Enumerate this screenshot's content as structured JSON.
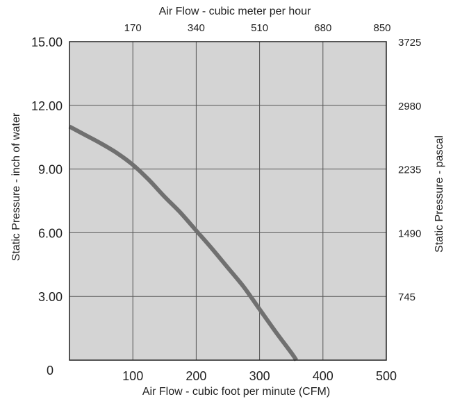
{
  "colors": {
    "plot_background": "#d4d4d4",
    "grid": "#555555",
    "curve": "#707070",
    "frame": "#222222",
    "text": "#222222"
  },
  "chart_data": {
    "type": "line",
    "title": "",
    "xlabel": "Air Flow - cubic foot per minute (CFM)",
    "ylabel": "Static Pressure - inch of water",
    "x2label": "Air Flow - cubic meter per hour",
    "y2label": "Static Pressure - pascal",
    "xlim": [
      0,
      500
    ],
    "ylim": [
      0,
      15
    ],
    "grid": true,
    "x_ticks": [
      {
        "value": 0,
        "label": ""
      },
      {
        "value": 100,
        "label": "100"
      },
      {
        "value": 200,
        "label": "200"
      },
      {
        "value": 300,
        "label": "300"
      },
      {
        "value": 400,
        "label": "400"
      },
      {
        "value": 500,
        "label": "500"
      }
    ],
    "origin_label": "0",
    "y_ticks": [
      {
        "value": 3,
        "label": "3.00"
      },
      {
        "value": 6,
        "label": "6.00"
      },
      {
        "value": 9,
        "label": "9.00"
      },
      {
        "value": 12,
        "label": "12.00"
      },
      {
        "value": 15,
        "label": "15.00"
      }
    ],
    "x2_ticks": [
      {
        "value": 100,
        "label": "170"
      },
      {
        "value": 200,
        "label": "340"
      },
      {
        "value": 300,
        "label": "510"
      },
      {
        "value": 400,
        "label": "680"
      },
      {
        "value": 500,
        "label": "850"
      }
    ],
    "y2_ticks": [
      {
        "value": 3,
        "label": "745"
      },
      {
        "value": 6,
        "label": "1490"
      },
      {
        "value": 9,
        "label": "2235"
      },
      {
        "value": 12,
        "label": "2980"
      },
      {
        "value": 15,
        "label": "3725"
      }
    ],
    "series": [
      {
        "x": [
          0,
          25,
          50,
          75,
          100,
          125,
          150,
          175,
          200,
          225,
          250,
          275,
          300,
          325,
          350,
          358
        ],
        "y": [
          11.0,
          10.6,
          10.2,
          9.75,
          9.2,
          8.5,
          7.7,
          6.95,
          6.1,
          5.25,
          4.35,
          3.45,
          2.4,
          1.35,
          0.35,
          0.0
        ]
      }
    ]
  }
}
